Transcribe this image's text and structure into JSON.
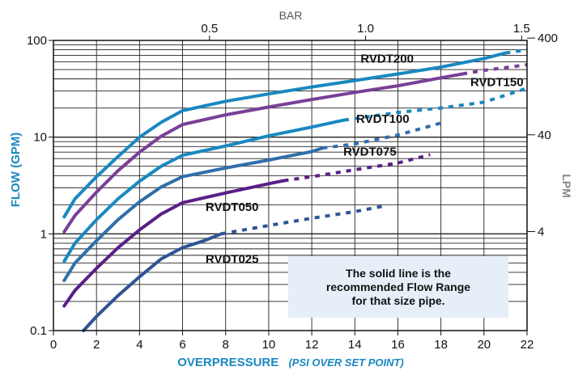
{
  "chart_data": {
    "type": "line",
    "xlabel": "OVERPRESSURE",
    "xlabel_note": "(PSI OVER SET POINT)",
    "ylabel": "FLOW (GPM)",
    "y2label": "LPM",
    "x2label": "BAR",
    "xlim": [
      0,
      22
    ],
    "ylim": [
      0.1,
      100
    ],
    "y_scale": "log",
    "x_ticks": [
      "0",
      "2",
      "4",
      "6",
      "8",
      "10",
      "12",
      "14",
      "16",
      "18",
      "20",
      "22"
    ],
    "y_ticks": [
      "0.1",
      "1",
      "10",
      "100"
    ],
    "x2_ticks": [
      {
        "label": "0.5",
        "psi": 7.25
      },
      {
        "label": "1.0",
        "psi": 14.5
      },
      {
        "label": "1.5",
        "psi": 21.75
      }
    ],
    "y2_ticks": [
      {
        "label": "4",
        "gpm": 1.057
      },
      {
        "label": "40",
        "gpm": 10.57
      },
      {
        "label": "400",
        "gpm": 105.7
      }
    ],
    "grid": true,
    "series": [
      {
        "name": "RVDT200",
        "color": "#1a88c0",
        "solid": [
          [
            0.5,
            1.5
          ],
          [
            1,
            2.3
          ],
          [
            2,
            3.9
          ],
          [
            3,
            6.3
          ],
          [
            4,
            10
          ],
          [
            5,
            14.2
          ],
          [
            6,
            18.8
          ],
          [
            8,
            23.5
          ],
          [
            10,
            28
          ],
          [
            12,
            33
          ],
          [
            14,
            38.5
          ],
          [
            16,
            45
          ],
          [
            18,
            53
          ],
          [
            20,
            65
          ],
          [
            21,
            74
          ]
        ],
        "dashed": [
          [
            21,
            74
          ],
          [
            22,
            80
          ]
        ]
      },
      {
        "name": "RVDT150",
        "color": "#7a3f98",
        "solid": [
          [
            0.5,
            1.05
          ],
          [
            1,
            1.55
          ],
          [
            2,
            2.7
          ],
          [
            3,
            4.5
          ],
          [
            4,
            7
          ],
          [
            5,
            10.2
          ],
          [
            6,
            13.5
          ],
          [
            8,
            17
          ],
          [
            10,
            20.5
          ],
          [
            12,
            24.5
          ],
          [
            14,
            29
          ],
          [
            16,
            34
          ],
          [
            18,
            41
          ],
          [
            19,
            45
          ]
        ],
        "dashed": [
          [
            19,
            45
          ],
          [
            20,
            49
          ],
          [
            22,
            56
          ]
        ]
      },
      {
        "name": "RVDT100",
        "color": "#1a88c0",
        "solid": [
          [
            0.5,
            0.52
          ],
          [
            1,
            0.8
          ],
          [
            2,
            1.4
          ],
          [
            3,
            2.3
          ],
          [
            4,
            3.5
          ],
          [
            5,
            5
          ],
          [
            6,
            6.5
          ],
          [
            8,
            8.1
          ],
          [
            10,
            10.3
          ],
          [
            12,
            12.7
          ],
          [
            13.5,
            15
          ]
        ],
        "dashed": [
          [
            13.5,
            15
          ],
          [
            16,
            18
          ],
          [
            18,
            20
          ],
          [
            20,
            23
          ],
          [
            22,
            32
          ]
        ]
      },
      {
        "name": "RVDT075",
        "color": "#2f6eab",
        "solid": [
          [
            0.5,
            0.33
          ],
          [
            1,
            0.5
          ],
          [
            2,
            0.85
          ],
          [
            3,
            1.4
          ],
          [
            4,
            2.15
          ],
          [
            5,
            3.05
          ],
          [
            6,
            3.9
          ],
          [
            8,
            4.8
          ],
          [
            10,
            5.8
          ],
          [
            12,
            7.1
          ],
          [
            12.5,
            7.7
          ]
        ],
        "dashed": [
          [
            12.5,
            7.7
          ],
          [
            14,
            8.5
          ],
          [
            16,
            10.5
          ],
          [
            18,
            14
          ]
        ]
      },
      {
        "name": "RVDT050",
        "color": "#5a1f86",
        "solid": [
          [
            0.5,
            0.18
          ],
          [
            1,
            0.26
          ],
          [
            2,
            0.44
          ],
          [
            3,
            0.72
          ],
          [
            4,
            1.1
          ],
          [
            5,
            1.6
          ],
          [
            6,
            2.1
          ],
          [
            8,
            2.65
          ],
          [
            10,
            3.3
          ],
          [
            10.7,
            3.55
          ]
        ],
        "dashed": [
          [
            10.7,
            3.55
          ],
          [
            12,
            3.9
          ],
          [
            14,
            4.6
          ],
          [
            16,
            5.4
          ],
          [
            17.5,
            6.6
          ]
        ]
      },
      {
        "name": "RVDT025",
        "color": "#2f5495",
        "solid": [
          [
            1.4,
            0.1
          ],
          [
            2,
            0.14
          ],
          [
            3,
            0.23
          ],
          [
            4,
            0.36
          ],
          [
            5,
            0.55
          ],
          [
            6,
            0.72
          ],
          [
            7,
            0.85
          ],
          [
            7.8,
            1
          ]
        ],
        "dashed": [
          [
            7.8,
            1
          ],
          [
            10,
            1.22
          ],
          [
            12,
            1.45
          ],
          [
            14,
            1.7
          ],
          [
            15.3,
            1.93
          ]
        ]
      }
    ]
  },
  "note": {
    "line1": "The solid line is the",
    "line2": "recommended Flow Range",
    "line3": "for that size pipe."
  }
}
